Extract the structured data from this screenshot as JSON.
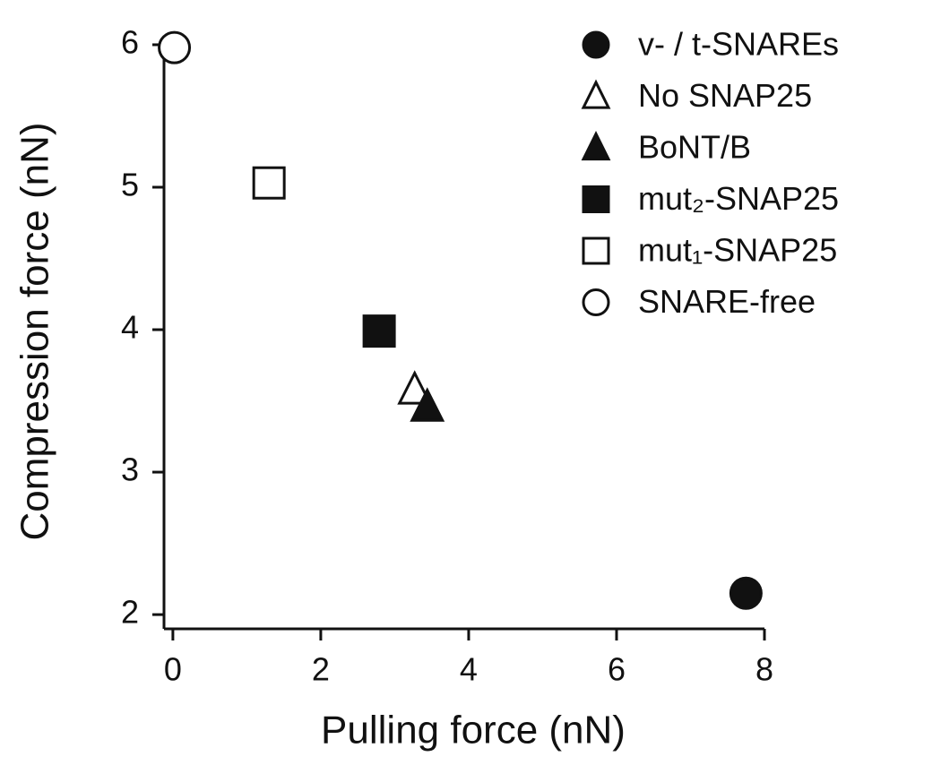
{
  "chart_data": {
    "type": "scatter",
    "x_label": "Pulling force (nN)",
    "y_label": "Compression force (nN)",
    "xlim": [
      -0.12,
      8
    ],
    "xticks": [
      0,
      2,
      4,
      6,
      8
    ],
    "ylim": [
      1.9,
      6.05
    ],
    "yticks": [
      2,
      3,
      4,
      5,
      6
    ],
    "legend": "upper right",
    "series": [
      {
        "name": "v- / t-SNAREs",
        "marker": "circle",
        "filled": true,
        "color": "#111111",
        "x": [
          7.75
        ],
        "y": [
          2.15
        ]
      },
      {
        "name": "No SNAP25",
        "marker": "triangle",
        "filled": false,
        "color": "#111111",
        "x": [
          3.27
        ],
        "y": [
          3.58
        ]
      },
      {
        "name": "BoNT/B",
        "marker": "triangle",
        "filled": true,
        "color": "#111111",
        "x": [
          3.44
        ],
        "y": [
          3.46
        ]
      },
      {
        "name": "mut₂-SNAP25",
        "marker": "square",
        "filled": true,
        "color": "#111111",
        "x": [
          2.79
        ],
        "y": [
          3.99
        ]
      },
      {
        "name": "mut₁-SNAP25",
        "marker": "square",
        "filled": false,
        "color": "#111111",
        "x": [
          1.3
        ],
        "y": [
          5.03
        ]
      },
      {
        "name": "SNARE-free",
        "marker": "circle",
        "filled": false,
        "color": "#111111",
        "x": [
          0.02
        ],
        "y": [
          5.98
        ]
      }
    ]
  }
}
